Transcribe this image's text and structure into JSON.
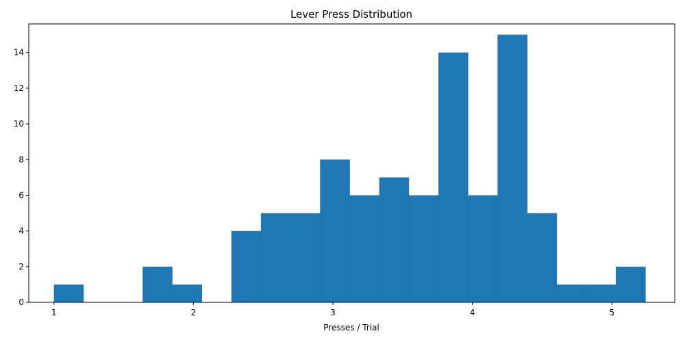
{
  "chart_data": {
    "type": "bar",
    "subtype": "histogram",
    "title": "Lever Press Distribution",
    "xlabel": "Presses / Trial",
    "ylabel": "",
    "xlim": [
      0.82,
      5.45
    ],
    "ylim": [
      0,
      15.6
    ],
    "x_ticks": [
      1,
      2,
      3,
      4,
      5
    ],
    "y_ticks": [
      0,
      2,
      4,
      6,
      8,
      10,
      12,
      14
    ],
    "bin_edges": [
      1.0,
      1.212,
      1.424,
      1.636,
      1.848,
      2.06,
      2.272,
      2.484,
      2.696,
      2.908,
      3.12,
      3.332,
      3.544,
      3.756,
      3.968,
      4.18,
      4.392,
      4.604,
      4.816,
      5.028,
      5.24
    ],
    "counts": [
      1,
      0,
      0,
      2,
      1,
      0,
      4,
      5,
      5,
      8,
      6,
      7,
      6,
      14,
      6,
      15,
      5,
      1,
      1,
      2
    ],
    "bar_color": "#1f77b4",
    "grid": false,
    "legend": "none"
  }
}
